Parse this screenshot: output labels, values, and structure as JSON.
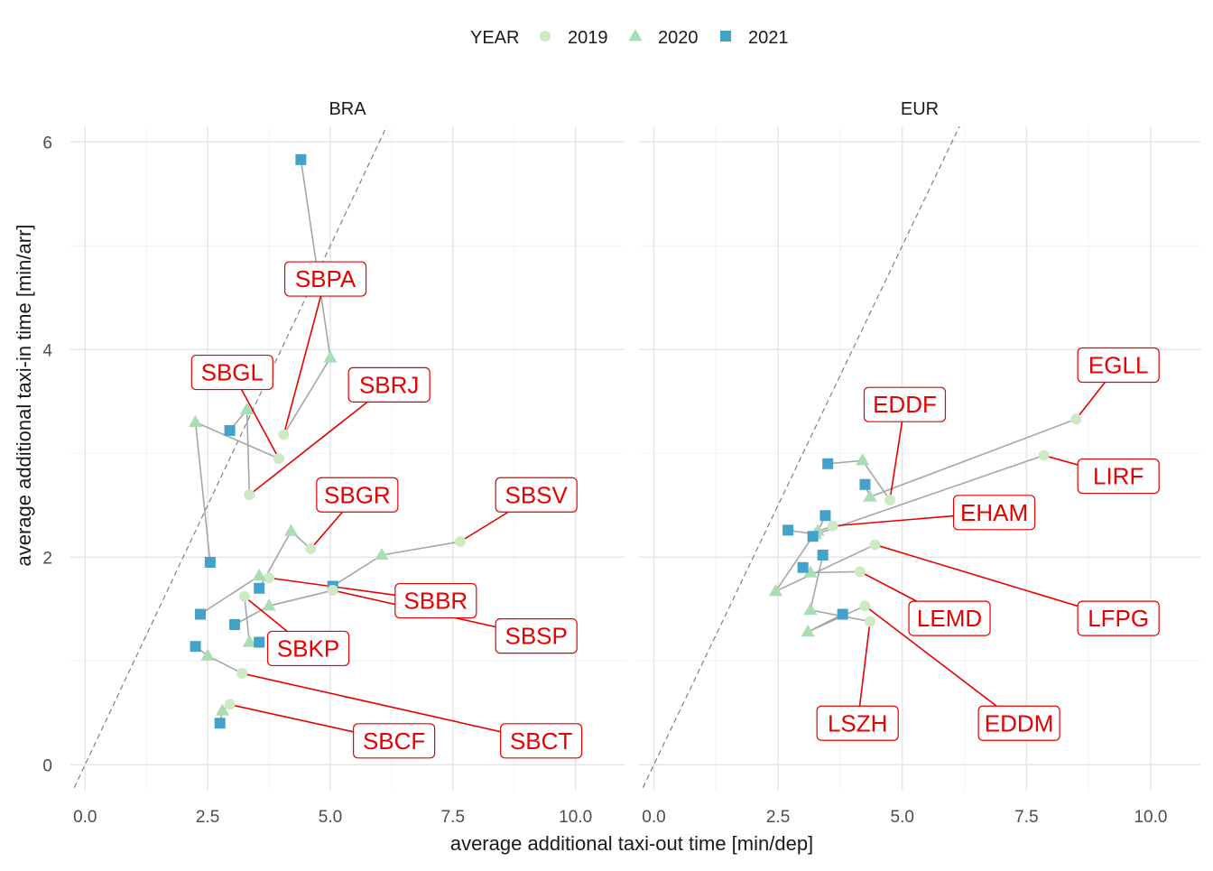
{
  "chart_data": {
    "type": "scatter",
    "title": "",
    "xlabel": "average additional taxi-out time [min/dep]",
    "ylabel": "average additional taxi-in time [min/arr]",
    "xlim": [
      -0.3,
      11.0
    ],
    "ylim": [
      -0.25,
      6.15
    ],
    "x_ticks": [
      0.0,
      2.5,
      5.0,
      7.5,
      10.0
    ],
    "x_tick_labels": [
      "0.0",
      "2.5",
      "5.0",
      "7.5",
      "10.0"
    ],
    "y_ticks": [
      0,
      2,
      4,
      6
    ],
    "y_tick_labels": [
      "0",
      "2",
      "4",
      "6"
    ],
    "grid": true,
    "reference_line": "y = x",
    "legend": {
      "title": "YEAR",
      "placement": "top",
      "entries": [
        {
          "label": "2019",
          "shape": "circle",
          "color": "#ccebc5"
        },
        {
          "label": "2020",
          "shape": "triangle",
          "color": "#a8ddb5"
        },
        {
          "label": "2021",
          "shape": "square",
          "color": "#43a2ca"
        }
      ]
    },
    "colors": {
      "line": "#a6a6a6",
      "label": "#e60000",
      "ref": "#808080"
    },
    "panels": [
      {
        "name": "BRA",
        "airports": [
          {
            "code": "SBPA",
            "points": [
              {
                "year": "2019",
                "x": 4.05,
                "y": 3.18
              },
              {
                "year": "2020",
                "x": 5.0,
                "y": 3.92
              },
              {
                "year": "2021",
                "x": 4.4,
                "y": 5.83
              }
            ]
          },
          {
            "code": "SBGL",
            "points": [
              {
                "year": "2019",
                "x": 3.95,
                "y": 2.95
              },
              {
                "year": "2020",
                "x": 2.25,
                "y": 3.3
              },
              {
                "year": "2021",
                "x": 2.55,
                "y": 1.95
              }
            ]
          },
          {
            "code": "SBRJ",
            "points": [
              {
                "year": "2019",
                "x": 3.35,
                "y": 2.6
              },
              {
                "year": "2020",
                "x": 3.3,
                "y": 3.42
              },
              {
                "year": "2021",
                "x": 2.95,
                "y": 3.22
              }
            ]
          },
          {
            "code": "SBGR",
            "points": [
              {
                "year": "2019",
                "x": 4.6,
                "y": 2.08
              },
              {
                "year": "2020",
                "x": 4.2,
                "y": 2.25
              },
              {
                "year": "2021",
                "x": 3.55,
                "y": 1.7
              }
            ]
          },
          {
            "code": "SBSV",
            "points": [
              {
                "year": "2019",
                "x": 7.65,
                "y": 2.15
              },
              {
                "year": "2020",
                "x": 6.05,
                "y": 2.02
              },
              {
                "year": "2021",
                "x": 5.05,
                "y": 1.72
              }
            ]
          },
          {
            "code": "SBBR",
            "points": [
              {
                "year": "2019",
                "x": 3.75,
                "y": 1.8
              },
              {
                "year": "2020",
                "x": 3.55,
                "y": 1.82
              },
              {
                "year": "2021",
                "x": 2.35,
                "y": 1.45
              }
            ]
          },
          {
            "code": "SBSP",
            "points": [
              {
                "year": "2019",
                "x": 5.05,
                "y": 1.68
              },
              {
                "year": "2020",
                "x": 3.75,
                "y": 1.53
              },
              {
                "year": "2021",
                "x": 3.05,
                "y": 1.35
              }
            ]
          },
          {
            "code": "SBKP",
            "points": [
              {
                "year": "2019",
                "x": 3.25,
                "y": 1.62
              },
              {
                "year": "2020",
                "x": 3.35,
                "y": 1.18
              },
              {
                "year": "2021",
                "x": 3.55,
                "y": 1.18
              }
            ]
          },
          {
            "code": "SBCT",
            "points": [
              {
                "year": "2019",
                "x": 3.2,
                "y": 0.88
              },
              {
                "year": "2020",
                "x": 2.5,
                "y": 1.05
              },
              {
                "year": "2021",
                "x": 2.25,
                "y": 1.14
              }
            ]
          },
          {
            "code": "SBCF",
            "points": [
              {
                "year": "2019",
                "x": 2.95,
                "y": 0.58
              },
              {
                "year": "2020",
                "x": 2.8,
                "y": 0.52
              },
              {
                "year": "2021",
                "x": 2.75,
                "y": 0.4
              }
            ]
          }
        ],
        "labels": [
          {
            "code": "SBPA",
            "x": 4.9,
            "y": 4.68,
            "year": "2019"
          },
          {
            "code": "SBGL",
            "x": 3.0,
            "y": 3.78,
            "year": "2019"
          },
          {
            "code": "SBRJ",
            "x": 6.2,
            "y": 3.66,
            "year": "2019"
          },
          {
            "code": "SBGR",
            "x": 5.55,
            "y": 2.6,
            "year": "2019"
          },
          {
            "code": "SBSV",
            "x": 9.2,
            "y": 2.6,
            "year": "2019"
          },
          {
            "code": "SBBR",
            "x": 7.15,
            "y": 1.58,
            "year": "2019"
          },
          {
            "code": "SBSP",
            "x": 9.2,
            "y": 1.24,
            "year": "2019"
          },
          {
            "code": "SBKP",
            "x": 4.55,
            "y": 1.12,
            "year": "2019"
          },
          {
            "code": "SBCT",
            "x": 9.3,
            "y": 0.23,
            "year": "2019"
          },
          {
            "code": "SBCF",
            "x": 6.3,
            "y": 0.23,
            "year": "2019"
          }
        ]
      },
      {
        "name": "EUR",
        "airports": [
          {
            "code": "EGLL",
            "points": [
              {
                "year": "2019",
                "x": 8.5,
                "y": 3.33
              },
              {
                "year": "2020",
                "x": 4.35,
                "y": 2.58
              },
              {
                "year": "2021",
                "x": 4.25,
                "y": 2.7
              }
            ]
          },
          {
            "code": "EDDF",
            "points": [
              {
                "year": "2019",
                "x": 4.75,
                "y": 2.55
              },
              {
                "year": "2020",
                "x": 4.2,
                "y": 2.93
              },
              {
                "year": "2021",
                "x": 3.5,
                "y": 2.9
              }
            ]
          },
          {
            "code": "LIRF",
            "points": [
              {
                "year": "2019",
                "x": 7.85,
                "y": 2.98
              },
              {
                "year": "2020",
                "x": 3.25,
                "y": 2.22
              },
              {
                "year": "2021",
                "x": 2.7,
                "y": 2.26
              }
            ]
          },
          {
            "code": "EHAM",
            "points": [
              {
                "year": "2019",
                "x": 3.6,
                "y": 2.3
              },
              {
                "year": "2020",
                "x": 3.3,
                "y": 2.25
              },
              {
                "year": "2021",
                "x": 3.45,
                "y": 2.4
              }
            ]
          },
          {
            "code": "LFPG",
            "points": [
              {
                "year": "2019",
                "x": 4.45,
                "y": 2.12
              },
              {
                "year": "2020",
                "x": 2.45,
                "y": 1.67
              },
              {
                "year": "2021",
                "x": 3.2,
                "y": 2.2
              }
            ]
          },
          {
            "code": "LEMD",
            "points": [
              {
                "year": "2019",
                "x": 4.15,
                "y": 1.86
              },
              {
                "year": "2020",
                "x": 3.15,
                "y": 1.85
              },
              {
                "year": "2021",
                "x": 3.0,
                "y": 1.9
              }
            ]
          },
          {
            "code": "EDDM",
            "points": [
              {
                "year": "2019",
                "x": 4.25,
                "y": 1.53
              },
              {
                "year": "2020",
                "x": 3.1,
                "y": 1.28
              },
              {
                "year": "2021",
                "x": 3.8,
                "y": 1.45
              }
            ]
          },
          {
            "code": "LSZH",
            "points": [
              {
                "year": "2019",
                "x": 4.35,
                "y": 1.38
              },
              {
                "year": "2020",
                "x": 3.15,
                "y": 1.49
              },
              {
                "year": "2021",
                "x": 3.4,
                "y": 2.02
              }
            ]
          }
        ],
        "labels": [
          {
            "code": "EGLL",
            "x": 9.35,
            "y": 3.85,
            "year": "2019"
          },
          {
            "code": "EDDF",
            "x": 5.05,
            "y": 3.47,
            "year": "2019"
          },
          {
            "code": "LIRF",
            "x": 9.35,
            "y": 2.78,
            "year": "2019"
          },
          {
            "code": "EHAM",
            "x": 6.85,
            "y": 2.43,
            "year": "2019"
          },
          {
            "code": "LFPG",
            "x": 9.35,
            "y": 1.41,
            "year": "2019"
          },
          {
            "code": "LEMD",
            "x": 5.95,
            "y": 1.41,
            "year": "2019"
          },
          {
            "code": "LSZH",
            "x": 4.1,
            "y": 0.4,
            "year": "2019"
          },
          {
            "code": "EDDM",
            "x": 7.35,
            "y": 0.4,
            "year": "2019"
          }
        ]
      }
    ]
  }
}
